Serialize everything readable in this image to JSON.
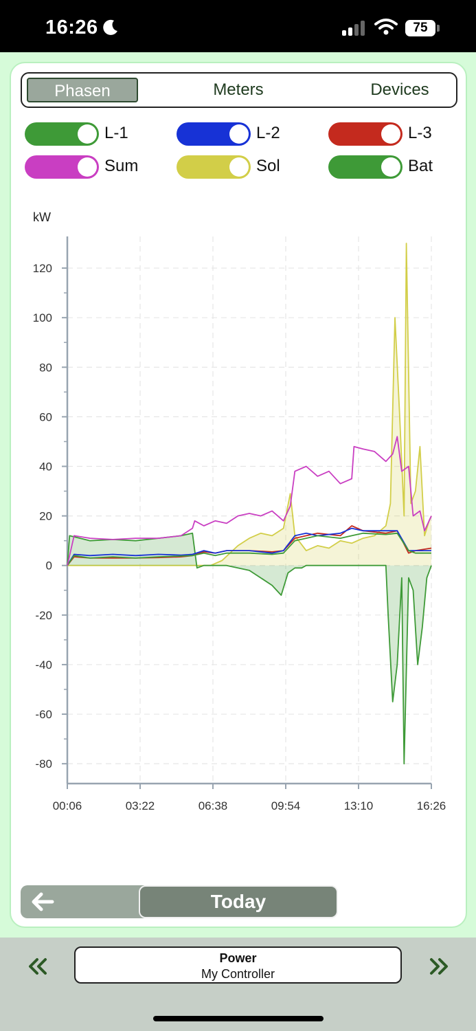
{
  "status_bar": {
    "time": "16:26",
    "battery": "75"
  },
  "tabs": [
    {
      "label": "Phasen",
      "active": true
    },
    {
      "label": "Meters",
      "active": false
    },
    {
      "label": "Devices",
      "active": false
    }
  ],
  "toggles": [
    {
      "label": "L-1",
      "color": "#3e9a37",
      "on": true
    },
    {
      "label": "L-2",
      "color": "#1732d6",
      "on": true
    },
    {
      "label": "L-3",
      "color": "#c42a1e",
      "on": true
    },
    {
      "label": "Sum",
      "color": "#c93ec2",
      "on": true
    },
    {
      "label": "Sol",
      "color": "#d2ce48",
      "on": true
    },
    {
      "label": "Bat",
      "color": "#3e9a37",
      "on": true
    }
  ],
  "chart_data": {
    "type": "line",
    "ylabel": "kW",
    "ylim": [
      -88,
      130
    ],
    "yticks": [
      120,
      100,
      80,
      60,
      40,
      20,
      0,
      -20,
      -40,
      -60,
      -80
    ],
    "xticks": [
      "00:06",
      "03:22",
      "06:38",
      "09:54",
      "13:10",
      "16:26"
    ],
    "grid": true,
    "series": [
      {
        "name": "L-1",
        "color": "#3e9a37",
        "fill": false,
        "points": [
          [
            0,
            0
          ],
          [
            0.3,
            4
          ],
          [
            1,
            3
          ],
          [
            2,
            3.5
          ],
          [
            3,
            3
          ],
          [
            4,
            3.5
          ],
          [
            5,
            3.8
          ],
          [
            5.5,
            4
          ],
          [
            6,
            5
          ],
          [
            6.5,
            4
          ],
          [
            7,
            5
          ],
          [
            8,
            5
          ],
          [
            9,
            4.5
          ],
          [
            9.5,
            5
          ],
          [
            10,
            10
          ],
          [
            10.5,
            11
          ],
          [
            11,
            12
          ],
          [
            12,
            11
          ],
          [
            12.5,
            12
          ],
          [
            13,
            13
          ],
          [
            14,
            12.5
          ],
          [
            14.5,
            13
          ],
          [
            15,
            6
          ],
          [
            15.3,
            5
          ],
          [
            16,
            5
          ]
        ]
      },
      {
        "name": "L-2",
        "color": "#1732d6",
        "fill": false,
        "points": [
          [
            0,
            0
          ],
          [
            0.3,
            4.5
          ],
          [
            1,
            4
          ],
          [
            2,
            4.5
          ],
          [
            3,
            4
          ],
          [
            4,
            4.5
          ],
          [
            5,
            4.2
          ],
          [
            5.5,
            4.5
          ],
          [
            6,
            6
          ],
          [
            6.5,
            5
          ],
          [
            7,
            6
          ],
          [
            8,
            6
          ],
          [
            9,
            5
          ],
          [
            9.5,
            6
          ],
          [
            10,
            12
          ],
          [
            10.5,
            13
          ],
          [
            11,
            12
          ],
          [
            12,
            13
          ],
          [
            12.5,
            15
          ],
          [
            13,
            14
          ],
          [
            14,
            14
          ],
          [
            14.5,
            14
          ],
          [
            15,
            6
          ],
          [
            15.3,
            6
          ],
          [
            16,
            6
          ]
        ]
      },
      {
        "name": "L-3",
        "color": "#c42a1e",
        "fill": false,
        "points": [
          [
            0,
            0
          ],
          [
            0.3,
            3.5
          ],
          [
            1,
            3
          ],
          [
            2,
            3
          ],
          [
            3,
            3
          ],
          [
            4,
            3.2
          ],
          [
            5,
            3.5
          ],
          [
            5.5,
            4
          ],
          [
            6,
            5.5
          ],
          [
            6.5,
            5
          ],
          [
            7,
            6
          ],
          [
            8,
            6
          ],
          [
            9,
            5.5
          ],
          [
            9.5,
            6
          ],
          [
            10,
            11
          ],
          [
            10.5,
            12
          ],
          [
            11,
            13
          ],
          [
            12,
            12
          ],
          [
            12.5,
            16
          ],
          [
            13,
            14
          ],
          [
            14,
            13
          ],
          [
            14.5,
            14
          ],
          [
            15,
            5
          ],
          [
            15.3,
            6
          ],
          [
            16,
            7
          ]
        ]
      },
      {
        "name": "Sum",
        "color": "#c93ec2",
        "fill": false,
        "points": [
          [
            0,
            0
          ],
          [
            0.3,
            12
          ],
          [
            1,
            11
          ],
          [
            2,
            10.5
          ],
          [
            3,
            11
          ],
          [
            4,
            11
          ],
          [
            5,
            12
          ],
          [
            5.5,
            15
          ],
          [
            5.6,
            18
          ],
          [
            6,
            16
          ],
          [
            6.5,
            18
          ],
          [
            7,
            17
          ],
          [
            7.5,
            20
          ],
          [
            8,
            21
          ],
          [
            8.5,
            20
          ],
          [
            9,
            22
          ],
          [
            9.5,
            18
          ],
          [
            9.8,
            24
          ],
          [
            10,
            38
          ],
          [
            10.5,
            40
          ],
          [
            11,
            36
          ],
          [
            11.5,
            38
          ],
          [
            12,
            33
          ],
          [
            12.5,
            35
          ],
          [
            12.6,
            48
          ],
          [
            13,
            47
          ],
          [
            13.5,
            46
          ],
          [
            14,
            42
          ],
          [
            14.3,
            45
          ],
          [
            14.5,
            52
          ],
          [
            14.7,
            38
          ],
          [
            15,
            40
          ],
          [
            15.2,
            20
          ],
          [
            15.5,
            22
          ],
          [
            15.7,
            14
          ],
          [
            16,
            20
          ]
        ]
      },
      {
        "name": "Sol",
        "color": "#d2ce48",
        "fill": true,
        "points": [
          [
            0,
            0
          ],
          [
            5.8,
            0
          ],
          [
            6.3,
            0
          ],
          [
            6.8,
            2
          ],
          [
            7.5,
            8
          ],
          [
            8,
            11
          ],
          [
            8.5,
            13
          ],
          [
            9,
            12
          ],
          [
            9.5,
            15
          ],
          [
            9.8,
            29
          ],
          [
            10,
            12
          ],
          [
            10.5,
            6
          ],
          [
            11,
            8
          ],
          [
            11.5,
            7
          ],
          [
            12,
            10
          ],
          [
            12.5,
            9
          ],
          [
            13,
            11
          ],
          [
            13.5,
            12
          ],
          [
            14,
            16
          ],
          [
            14.2,
            25
          ],
          [
            14.4,
            100
          ],
          [
            14.6,
            62
          ],
          [
            14.8,
            20
          ],
          [
            14.9,
            130
          ],
          [
            15.1,
            25
          ],
          [
            15.3,
            30
          ],
          [
            15.5,
            48
          ],
          [
            15.7,
            12
          ],
          [
            15.9,
            18
          ],
          [
            16,
            20
          ]
        ]
      },
      {
        "name": "Bat",
        "color": "#3e9a37",
        "fill": true,
        "points": [
          [
            0,
            0
          ],
          [
            0.1,
            12
          ],
          [
            1,
            10
          ],
          [
            2,
            10.5
          ],
          [
            3,
            10
          ],
          [
            4,
            11
          ],
          [
            5,
            12
          ],
          [
            5.5,
            13
          ],
          [
            5.7,
            -1
          ],
          [
            6,
            0
          ],
          [
            7,
            0
          ],
          [
            8,
            -2
          ],
          [
            8.5,
            -5
          ],
          [
            9,
            -8
          ],
          [
            9.4,
            -12
          ],
          [
            9.7,
            -3
          ],
          [
            10,
            -1
          ],
          [
            10.3,
            -1
          ],
          [
            10.5,
            0
          ],
          [
            11,
            0
          ],
          [
            12,
            0
          ],
          [
            13,
            0
          ],
          [
            14,
            0
          ],
          [
            14.1,
            -20
          ],
          [
            14.3,
            -55
          ],
          [
            14.5,
            -40
          ],
          [
            14.7,
            -5
          ],
          [
            14.8,
            -80
          ],
          [
            15,
            -5
          ],
          [
            15.2,
            -10
          ],
          [
            15.4,
            -40
          ],
          [
            15.6,
            -25
          ],
          [
            15.8,
            -5
          ],
          [
            16,
            0
          ]
        ]
      }
    ]
  },
  "navigation": {
    "today_label": "Today"
  },
  "controller": {
    "title": "Power",
    "subtitle": "My Controller"
  },
  "icons": {
    "back": "arrow-left-icon",
    "prev": "double-chevron-left-icon",
    "next": "double-chevron-right-icon"
  }
}
